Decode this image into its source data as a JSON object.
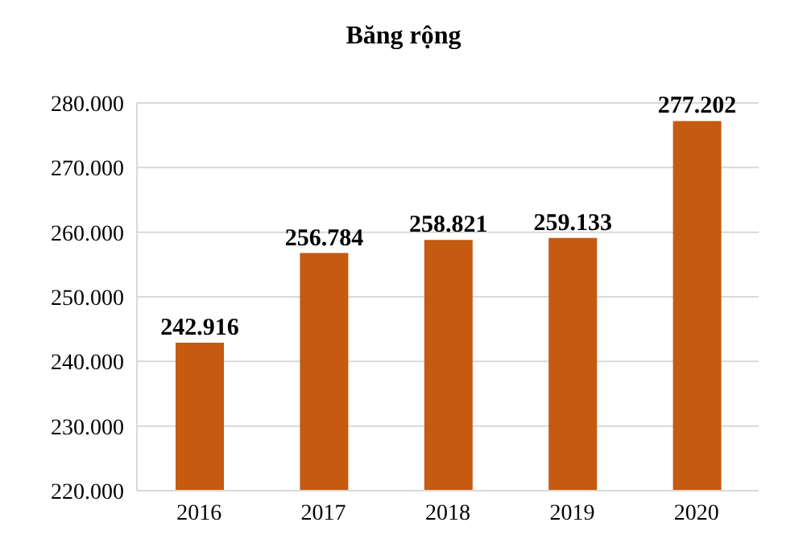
{
  "chart_data": {
    "type": "bar",
    "title": "Băng rộng",
    "categories": [
      "2016",
      "2017",
      "2018",
      "2019",
      "2020"
    ],
    "values": [
      242916,
      256784,
      258821,
      259133,
      277202
    ],
    "value_labels": [
      "242.916",
      "256.784",
      "258.821",
      "259.133",
      "277.202"
    ],
    "color": "#c55a11",
    "ylim": [
      220000,
      280000
    ],
    "yticks": [
      {
        "value": 220000,
        "label": "220.000"
      },
      {
        "value": 230000,
        "label": "230.000"
      },
      {
        "value": 240000,
        "label": "240.000"
      },
      {
        "value": 250000,
        "label": "250.000"
      },
      {
        "value": 260000,
        "label": "260.000"
      },
      {
        "value": 270000,
        "label": "270.000"
      },
      {
        "value": 280000,
        "label": "280.000"
      }
    ],
    "grid": "y"
  }
}
